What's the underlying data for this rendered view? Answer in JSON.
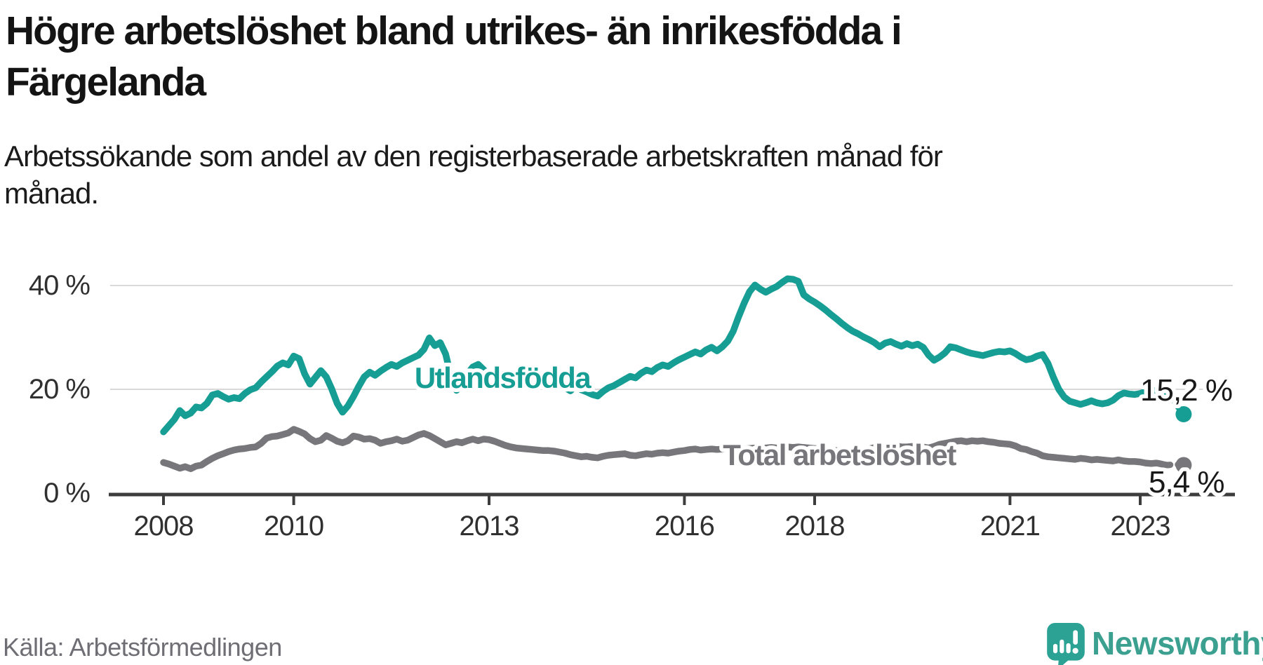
{
  "header": {
    "title": "Högre arbetslöshet bland utrikes- än inrikesfödda i Färgelanda",
    "subtitle": "Arbetssökande som andel av den registerbaserade arbetskraften månad för månad."
  },
  "footer": {
    "source": "Källa: Arbetsförmedlingen",
    "brand_name": "Newsworthy",
    "brand_color": "#3ba08f",
    "brand_icon": "newsworthy-speech-bubble-bar-chart-icon",
    "brand_icon_color": "#2ba294"
  },
  "chart_data": {
    "type": "line",
    "title": "Högre arbetslöshet bland utrikes- än inrikesfödda i Färgelanda",
    "xlabel": "",
    "ylabel": "Arbetssökande som andel av den registerbaserade arbetskraften",
    "x_unit": "month",
    "x_range": [
      "2008-01",
      "2023-09"
    ],
    "ylim": [
      0,
      43.5
    ],
    "grid": "horizontal",
    "legend_position": "inline-labels",
    "colors": {
      "grid": "#d9d9d9",
      "axis": "#3d3d3d",
      "value_label": "#191919"
    },
    "y_ticks": [
      {
        "value": 0,
        "label": "0 %"
      },
      {
        "value": 20,
        "label": "20 %"
      },
      {
        "value": 40,
        "label": "40 %"
      }
    ],
    "x_ticks": [
      {
        "year": 2008,
        "label": "2008"
      },
      {
        "year": 2010,
        "label": "2010"
      },
      {
        "year": 2013,
        "label": "2013"
      },
      {
        "year": 2016,
        "label": "2016"
      },
      {
        "year": 2018,
        "label": "2018"
      },
      {
        "year": 2021,
        "label": "2021"
      },
      {
        "year": 2023,
        "label": "2023"
      }
    ],
    "dashed_from_index": 184,
    "series": [
      {
        "name": "Utlandsfödda",
        "color": "#169e94",
        "end_label": "15,2 %",
        "end_value": 15.2,
        "values": [
          11.8,
          13.0,
          14.2,
          15.9,
          14.9,
          15.4,
          16.6,
          16.4,
          17.3,
          18.9,
          19.2,
          18.6,
          18.1,
          18.4,
          18.2,
          19.2,
          19.9,
          20.3,
          21.4,
          22.4,
          23.4,
          24.5,
          25.1,
          24.7,
          26.4,
          25.9,
          23.0,
          21.0,
          22.3,
          23.6,
          22.4,
          20.1,
          17.3,
          15.6,
          16.8,
          18.6,
          20.6,
          22.4,
          23.3,
          22.7,
          23.5,
          24.2,
          24.8,
          24.4,
          25.1,
          25.6,
          26.1,
          26.6,
          27.7,
          29.9,
          28.4,
          29.0,
          26.8,
          22.4,
          19.8,
          21.4,
          23.0,
          24.3,
          24.8,
          23.8,
          22.2,
          20.9,
          20.5,
          21.2,
          21.6,
          21.4,
          21.5,
          21.9,
          22.3,
          22.1,
          21.7,
          21.5,
          21.4,
          21.0,
          20.3,
          19.7,
          20.7,
          19.9,
          19.5,
          19.0,
          18.7,
          19.6,
          20.3,
          20.7,
          21.3,
          21.9,
          22.5,
          22.2,
          23.1,
          23.7,
          23.4,
          24.2,
          24.7,
          24.4,
          25.1,
          25.7,
          26.2,
          26.7,
          27.2,
          26.8,
          27.6,
          28.1,
          27.4,
          28.2,
          29.3,
          31.2,
          34.0,
          36.6,
          38.8,
          40.1,
          39.3,
          38.7,
          39.3,
          39.8,
          40.6,
          41.3,
          41.2,
          40.8,
          38.2,
          37.4,
          36.8,
          36.1,
          35.3,
          34.4,
          33.6,
          32.7,
          31.9,
          31.2,
          30.7,
          30.1,
          29.6,
          29.0,
          28.2,
          28.9,
          29.2,
          28.7,
          28.3,
          28.8,
          28.4,
          28.7,
          28.1,
          26.6,
          25.6,
          26.2,
          27.0,
          28.2,
          28.0,
          27.6,
          27.2,
          26.9,
          26.7,
          26.5,
          26.8,
          27.1,
          27.3,
          27.2,
          27.4,
          26.9,
          26.2,
          25.7,
          25.9,
          26.4,
          26.7,
          25.0,
          22.3,
          20.0,
          18.5,
          17.7,
          17.4,
          17.1,
          17.4,
          17.8,
          17.4,
          17.2,
          17.4,
          17.9,
          18.8,
          19.3,
          19.1,
          19.0,
          19.2,
          19.6,
          19.9,
          19.6,
          19.3,
          19.5,
          18.3,
          16.6,
          15.2
        ]
      },
      {
        "name": "Total arbetslöshet",
        "color": "#76767b",
        "end_label": "5,4 %",
        "end_value": 5.4,
        "values": [
          5.9,
          5.6,
          5.2,
          4.8,
          5.1,
          4.7,
          5.2,
          5.4,
          6.1,
          6.7,
          7.2,
          7.6,
          8.0,
          8.3,
          8.5,
          8.6,
          8.8,
          8.9,
          9.6,
          10.6,
          10.9,
          11.0,
          11.3,
          11.6,
          12.3,
          11.9,
          11.4,
          10.5,
          9.9,
          10.2,
          11.1,
          10.6,
          10.0,
          9.7,
          10.1,
          11.0,
          10.8,
          10.4,
          10.5,
          10.2,
          9.6,
          9.9,
          10.1,
          10.4,
          10.0,
          10.2,
          10.7,
          11.2,
          11.5,
          11.1,
          10.5,
          9.9,
          9.3,
          9.6,
          9.9,
          9.7,
          10.1,
          10.4,
          10.1,
          10.4,
          10.3,
          10.0,
          9.6,
          9.2,
          8.9,
          8.7,
          8.6,
          8.5,
          8.4,
          8.3,
          8.2,
          8.2,
          8.1,
          7.9,
          7.7,
          7.4,
          7.2,
          7.0,
          7.1,
          6.9,
          6.8,
          7.1,
          7.3,
          7.4,
          7.5,
          7.6,
          7.3,
          7.2,
          7.4,
          7.6,
          7.5,
          7.7,
          7.8,
          7.7,
          7.9,
          8.1,
          8.2,
          8.4,
          8.5,
          8.3,
          8.4,
          8.5,
          8.4,
          8.5,
          8.6,
          8.5,
          8.6,
          8.5,
          8.6,
          8.7,
          8.6,
          8.7,
          8.8,
          8.7,
          8.8,
          8.9,
          8.8,
          8.9,
          8.8,
          8.7,
          8.6,
          8.5,
          8.4,
          8.3,
          8.2,
          8.1,
          8.2,
          8.1,
          8.2,
          8.3,
          8.5,
          8.8,
          9.1,
          8.9,
          9.0,
          9.1,
          8.9,
          8.9,
          9.0,
          8.8,
          8.9,
          8.7,
          9.0,
          9.4,
          9.6,
          9.8,
          10.0,
          10.1,
          9.9,
          10.1,
          10.0,
          10.1,
          9.9,
          9.8,
          9.6,
          9.5,
          9.4,
          9.1,
          8.6,
          8.4,
          8.0,
          7.7,
          7.2,
          7.0,
          6.9,
          6.8,
          6.7,
          6.6,
          6.5,
          6.7,
          6.6,
          6.4,
          6.5,
          6.4,
          6.3,
          6.2,
          6.4,
          6.2,
          6.1,
          6.1,
          6.0,
          5.8,
          5.7,
          5.8,
          5.6,
          5.4,
          5.5,
          5.5,
          5.4
        ]
      }
    ]
  }
}
